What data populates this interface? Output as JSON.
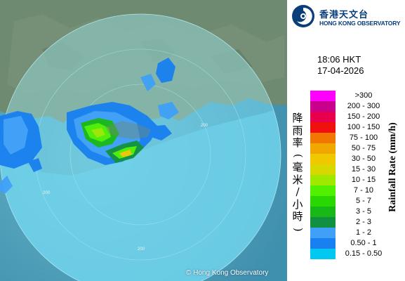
{
  "header": {
    "logo_icon": "hko-swirl-logo",
    "name_zh": "香港天文台",
    "name_en": "HONG KONG OBSERVATORY"
  },
  "timestamp": {
    "time": "18:06 HKT",
    "date": "17-04-2026"
  },
  "legend": {
    "unit_zh": [
      "降",
      "雨",
      "率",
      "(",
      "毫",
      "米",
      "/",
      "小",
      "時",
      ")"
    ],
    "unit_en": "Rainfall Rate (mm/h)",
    "items": [
      {
        "label": ">300",
        "color": "#ff00ff"
      },
      {
        "label": "200 - 300",
        "color": "#c8008c"
      },
      {
        "label": "150 - 200",
        "color": "#e8004c"
      },
      {
        "label": "100 - 150",
        "color": "#f01010"
      },
      {
        "label": "75 - 100",
        "color": "#f07800"
      },
      {
        "label": "50 - 75",
        "color": "#f0a800"
      },
      {
        "label": "30 - 50",
        "color": "#f0c800"
      },
      {
        "label": "15 - 30",
        "color": "#d8d800"
      },
      {
        "label": "10 - 15",
        "color": "#a0e800"
      },
      {
        "label": "7 - 10",
        "color": "#50f000"
      },
      {
        "label": "5 - 7",
        "color": "#28d800"
      },
      {
        "label": "3 - 5",
        "color": "#18b818"
      },
      {
        "label": "2 - 3",
        "color": "#109040"
      },
      {
        "label": "1 - 2",
        "color": "#40a0f8"
      },
      {
        "label": "0.50 - 1",
        "color": "#1880f0"
      },
      {
        "label": "0.15 - 0.50",
        "color": "#00c8f0"
      }
    ]
  },
  "map": {
    "range_labels": [
      "200",
      "200",
      "200"
    ],
    "copyright": "© Hong Kong Observatory",
    "colors": {
      "sea": "#5ab4cc",
      "land": "#6e8a70",
      "radar_disc": "#6fd8ec"
    }
  }
}
